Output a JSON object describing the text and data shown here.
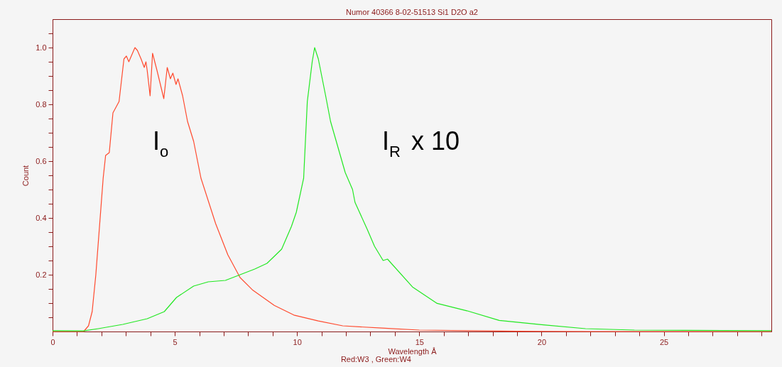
{
  "chart_data": {
    "type": "line",
    "title": "Numor 40366  8-02-51513 Si1 D2O a2",
    "xlabel": "Wavelength Å",
    "ylabel": "Count",
    "annotations": [
      "Red:W3 , Green:W4"
    ],
    "xlim": [
      0,
      29.4
    ],
    "ylim": [
      0,
      1.1
    ],
    "xticks": [
      0,
      {
        "value": 1,
        "label": null
      },
      {
        "value": 2,
        "label": null
      },
      {
        "value": 3,
        "label": null
      },
      {
        "value": 4,
        "label": null
      },
      5,
      {
        "value": 6,
        "label": null
      },
      {
        "value": 7,
        "label": null
      },
      {
        "value": 8,
        "label": null
      },
      {
        "value": 9,
        "label": null
      },
      10,
      {
        "value": 11,
        "label": null
      },
      {
        "value": 12,
        "label": null
      },
      {
        "value": 13,
        "label": null
      },
      {
        "value": 14,
        "label": null
      },
      15,
      {
        "value": 16,
        "label": null
      },
      {
        "value": 17,
        "label": null
      },
      {
        "value": 18,
        "label": null
      },
      {
        "value": 19,
        "label": null
      },
      20,
      {
        "value": 21,
        "label": null
      },
      {
        "value": 22,
        "label": null
      },
      {
        "value": 23,
        "label": null
      },
      {
        "value": 24,
        "label": null
      },
      25,
      {
        "value": 26,
        "label": null
      },
      {
        "value": 27,
        "label": null
      },
      {
        "value": 28,
        "label": null
      },
      {
        "value": 29,
        "label": null
      }
    ],
    "yticks": [
      {
        "value": 0.05,
        "label": null
      },
      {
        "value": 0.1,
        "label": null
      },
      {
        "value": 0.15,
        "label": null
      },
      0.2,
      {
        "value": 0.25,
        "label": null
      },
      {
        "value": 0.3,
        "label": null
      },
      {
        "value": 0.35,
        "label": null
      },
      0.4,
      {
        "value": 0.45,
        "label": null
      },
      {
        "value": 0.5,
        "label": null
      },
      {
        "value": 0.55,
        "label": null
      },
      0.6,
      {
        "value": 0.65,
        "label": null
      },
      {
        "value": 0.7,
        "label": null
      },
      {
        "value": 0.75,
        "label": null
      },
      0.8,
      {
        "value": 0.85,
        "label": null
      },
      {
        "value": 0.9,
        "label": null
      },
      {
        "value": 0.95,
        "label": null
      },
      {
        "value": 1.0,
        "label": "1.0"
      },
      {
        "value": 1.05,
        "label": null
      }
    ],
    "grid": false,
    "marker": "none",
    "line_style": "solid",
    "series": [
      {
        "name": "I$_{o}$",
        "color": "#ff4a2e",
        "x": [
          0,
          1.27,
          1.47,
          1.62,
          1.77,
          1.92,
          2.07,
          2.17,
          2.32,
          2.47,
          2.72,
          2.92,
          3.02,
          3.12,
          3.37,
          3.47,
          3.62,
          3.75,
          3.82,
          3.87,
          3.99,
          4.09,
          4.27,
          4.55,
          4.69,
          4.82,
          4.92,
          5.05,
          5.13,
          5.32,
          5.52,
          5.77,
          6.07,
          6.67,
          7.17,
          7.67,
          8.17,
          9.07,
          9.87,
          10.87,
          11.87,
          13.47,
          15,
          17,
          19,
          22,
          29.4
        ],
        "values": [
          0,
          0,
          0.02,
          0.07,
          0.2,
          0.37,
          0.54,
          0.62,
          0.63,
          0.77,
          0.81,
          0.96,
          0.97,
          0.95,
          1.0,
          0.99,
          0.96,
          0.93,
          0.95,
          0.92,
          0.83,
          0.98,
          0.92,
          0.82,
          0.93,
          0.89,
          0.91,
          0.87,
          0.89,
          0.83,
          0.74,
          0.67,
          0.54,
          0.38,
          0.27,
          0.19,
          0.147,
          0.092,
          0.058,
          0.037,
          0.02,
          0.012,
          0.005,
          0.003,
          0.001,
          0,
          0
        ]
      },
      {
        "name": "I$_{R}$ x 10",
        "color": "#22e822",
        "x": [
          0,
          1.27,
          1.87,
          2.87,
          3.87,
          4.57,
          5.07,
          5.77,
          6.37,
          7.07,
          7.67,
          8.27,
          8.77,
          9.37,
          9.77,
          9.97,
          10.27,
          10.42,
          10.62,
          10.72,
          10.87,
          11.17,
          11.37,
          11.57,
          11.97,
          12.27,
          12.37,
          12.87,
          13.17,
          13.52,
          13.7,
          14.72,
          15.73,
          16.95,
          18.27,
          20.0,
          21.8,
          23.8,
          25.9,
          29.4
        ],
        "values": [
          0.003,
          0.002,
          0.01,
          0.025,
          0.045,
          0.07,
          0.12,
          0.16,
          0.175,
          0.18,
          0.2,
          0.22,
          0.24,
          0.29,
          0.37,
          0.42,
          0.54,
          0.81,
          0.95,
          1.0,
          0.96,
          0.83,
          0.74,
          0.68,
          0.56,
          0.5,
          0.455,
          0.36,
          0.3,
          0.25,
          0.255,
          0.157,
          0.099,
          0.073,
          0.039,
          0.024,
          0.01,
          0.005,
          0.004,
          0.003
        ]
      }
    ]
  }
}
